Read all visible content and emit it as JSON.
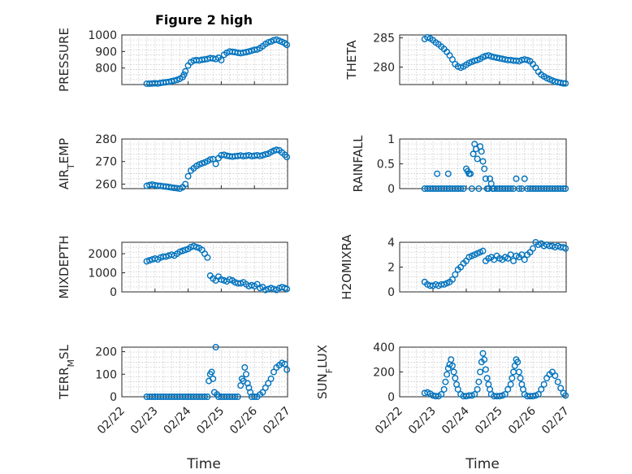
{
  "figure": {
    "title": "Figure 2 high",
    "xlabel": "Time",
    "date_ticks": [
      "02/22",
      "02/23",
      "02/24",
      "02/25",
      "02/26",
      "02/27"
    ],
    "marker_color": "#0072BD"
  },
  "chart_data": [
    {
      "type": "scatter",
      "name": "PRESSURE",
      "ylabel": "PRESSURE",
      "xlim": [
        "02/22",
        "02/27"
      ],
      "ylim": [
        700,
        1000
      ],
      "yticks": [
        800,
        900,
        1000
      ],
      "ytick_labels": [
        "800",
        "900",
        "1000"
      ],
      "x": [
        "02/22 18:00",
        "02/22 20:00",
        "02/22 22:00",
        "02/23 00:00",
        "02/23 02:00",
        "02/23 04:00",
        "02/23 06:00",
        "02/23 08:00",
        "02/23 10:00",
        "02/23 12:00",
        "02/23 14:00",
        "02/23 16:00",
        "02/23 18:00",
        "02/23 20:00",
        "02/23 21:00",
        "02/23 22:00",
        "02/24 00:00",
        "02/24 02:00",
        "02/24 04:00",
        "02/24 06:00",
        "02/24 08:00",
        "02/24 10:00",
        "02/24 12:00",
        "02/24 14:00",
        "02/24 16:00",
        "02/24 18:00",
        "02/24 20:00",
        "02/24 22:00",
        "02/25 00:00",
        "02/25 02:00",
        "02/25 04:00",
        "02/25 06:00",
        "02/25 08:00",
        "02/25 10:00",
        "02/25 12:00",
        "02/25 14:00",
        "02/25 16:00",
        "02/25 18:00",
        "02/25 20:00",
        "02/25 22:00",
        "02/26 00:00",
        "02/26 02:00",
        "02/26 04:00",
        "02/26 06:00",
        "02/26 08:00",
        "02/26 10:00",
        "02/26 12:00",
        "02/26 14:00",
        "02/26 16:00",
        "02/26 18:00",
        "02/26 20:00",
        "02/26 22:00",
        "02/26 23:30"
      ],
      "y": [
        705,
        705,
        706,
        708,
        706,
        710,
        712,
        714,
        716,
        720,
        724,
        728,
        735,
        745,
        760,
        780,
        815,
        835,
        845,
        848,
        846,
        850,
        852,
        855,
        860,
        858,
        854,
        862,
        848,
        880,
        892,
        900,
        898,
        896,
        892,
        890,
        893,
        896,
        900,
        905,
        910,
        912,
        920,
        932,
        945,
        955,
        960,
        968,
        972,
        965,
        958,
        950,
        940
      ]
    },
    {
      "type": "scatter",
      "name": "THETA",
      "ylabel": "THETA",
      "xlim": [
        "02/22",
        "02/27"
      ],
      "ylim": [
        277,
        285.5
      ],
      "yticks": [
        280,
        285
      ],
      "ytick_labels": [
        "280",
        "285"
      ],
      "x": [
        "02/22 18:00",
        "02/22 20:00",
        "02/22 22:00",
        "02/23 00:00",
        "02/23 02:00",
        "02/23 04:00",
        "02/23 06:00",
        "02/23 08:00",
        "02/23 10:00",
        "02/23 12:00",
        "02/23 14:00",
        "02/23 16:00",
        "02/23 18:00",
        "02/23 20:00",
        "02/23 22:00",
        "02/24 00:00",
        "02/24 02:00",
        "02/24 04:00",
        "02/24 06:00",
        "02/24 08:00",
        "02/24 10:00",
        "02/24 12:00",
        "02/24 14:00",
        "02/24 16:00",
        "02/24 18:00",
        "02/24 20:00",
        "02/24 22:00",
        "02/25 00:00",
        "02/25 02:00",
        "02/25 04:00",
        "02/25 06:00",
        "02/25 08:00",
        "02/25 10:00",
        "02/25 12:00",
        "02/25 14:00",
        "02/25 16:00",
        "02/25 18:00",
        "02/25 20:00",
        "02/25 22:00",
        "02/26 00:00",
        "02/26 02:00",
        "02/26 04:00",
        "02/26 06:00",
        "02/26 08:00",
        "02/26 10:00",
        "02/26 12:00",
        "02/26 14:00",
        "02/26 16:00",
        "02/26 18:00",
        "02/26 20:00",
        "02/26 22:00",
        "02/26 23:30"
      ],
      "y": [
        284.8,
        285.1,
        284.9,
        284.6,
        284.2,
        283.9,
        283.5,
        283.1,
        282.6,
        282.0,
        281.3,
        280.5,
        280.1,
        279.9,
        280.1,
        280.4,
        280.7,
        280.9,
        281.1,
        281.2,
        281.4,
        281.7,
        281.9,
        282.0,
        281.8,
        281.7,
        281.6,
        281.5,
        281.4,
        281.3,
        281.2,
        281.2,
        281.1,
        281.1,
        281.0,
        281.2,
        281.3,
        281.2,
        281.0,
        280.5,
        279.9,
        279.2,
        278.7,
        278.4,
        278.1,
        277.9,
        277.7,
        277.5,
        277.4,
        277.3,
        277.2,
        277.2
      ]
    },
    {
      "type": "scatter",
      "name": "AIR_TEMP",
      "ylabel": "AIR",
      "ylabel_sub": "T",
      "ylabel_tail": "EMP",
      "xlim": [
        "02/22",
        "02/27"
      ],
      "ylim": [
        258,
        280
      ],
      "yticks": [
        260,
        270,
        280
      ],
      "ytick_labels": [
        "260",
        "270",
        "280"
      ],
      "x": [
        "02/22 18:00",
        "02/22 20:00",
        "02/22 22:00",
        "02/23 00:00",
        "02/23 02:00",
        "02/23 04:00",
        "02/23 06:00",
        "02/23 08:00",
        "02/23 10:00",
        "02/23 12:00",
        "02/23 14:00",
        "02/23 16:00",
        "02/23 18:00",
        "02/23 20:00",
        "02/23 22:00",
        "02/24 00:00",
        "02/24 02:00",
        "02/24 04:00",
        "02/24 06:00",
        "02/24 08:00",
        "02/24 10:00",
        "02/24 12:00",
        "02/24 14:00",
        "02/24 16:00",
        "02/24 18:00",
        "02/24 20:00",
        "02/24 22:00",
        "02/25 00:00",
        "02/25 02:00",
        "02/25 04:00",
        "02/25 06:00",
        "02/25 08:00",
        "02/25 10:00",
        "02/25 12:00",
        "02/25 14:00",
        "02/25 16:00",
        "02/25 18:00",
        "02/25 20:00",
        "02/25 22:00",
        "02/26 00:00",
        "02/26 02:00",
        "02/26 04:00",
        "02/26 06:00",
        "02/26 08:00",
        "02/26 10:00",
        "02/26 12:00",
        "02/26 14:00",
        "02/26 16:00",
        "02/26 18:00",
        "02/26 20:00",
        "02/26 22:00",
        "02/26 23:30"
      ],
      "y": [
        259.2,
        259.6,
        259.8,
        259.5,
        259.3,
        259.2,
        259.0,
        258.9,
        258.7,
        258.5,
        258.3,
        258.2,
        258.0,
        258.6,
        260.0,
        263.5,
        266.0,
        267.0,
        268.0,
        268.7,
        269.2,
        269.6,
        270.2,
        270.9,
        271.1,
        269.0,
        271.5,
        272.8,
        273.0,
        272.6,
        272.4,
        272.2,
        272.4,
        272.5,
        272.7,
        272.4,
        272.6,
        272.8,
        272.4,
        272.6,
        272.8,
        272.5,
        272.8,
        273.2,
        273.5,
        274.2,
        274.8,
        275.2,
        275.0,
        274.0,
        273.0,
        272.0
      ]
    },
    {
      "type": "scatter",
      "name": "RAINFALL",
      "ylabel": "RAINFALL",
      "xlim": [
        "02/22",
        "02/27"
      ],
      "ylim": [
        0,
        1
      ],
      "yticks": [
        0,
        0.5,
        1
      ],
      "ytick_labels": [
        "0",
        "0.5",
        "1"
      ],
      "x": [
        "02/22 18:00",
        "02/22 20:00",
        "02/22 22:00",
        "02/23 00:00",
        "02/23 02:00",
        "02/23 03:00",
        "02/23 04:00",
        "02/23 06:00",
        "02/23 08:00",
        "02/23 10:00",
        "02/23 11:00",
        "02/23 12:00",
        "02/23 14:00",
        "02/23 16:00",
        "02/23 18:00",
        "02/23 20:00",
        "02/23 22:00",
        "02/24 00:00",
        "02/24 01:00",
        "02/24 02:00",
        "02/24 03:00",
        "02/24 04:00",
        "02/24 05:00",
        "02/24 06:00",
        "02/24 07:00",
        "02/24 08:00",
        "02/24 09:00",
        "02/24 10:00",
        "02/24 11:00",
        "02/24 12:00",
        "02/24 13:00",
        "02/24 14:00",
        "02/24 15:00",
        "02/24 16:00",
        "02/24 17:00",
        "02/24 18:00",
        "02/24 19:00",
        "02/24 20:00",
        "02/24 22:00",
        "02/25 00:00",
        "02/25 02:00",
        "02/25 04:00",
        "02/25 06:00",
        "02/25 08:00",
        "02/25 10:00",
        "02/25 12:00",
        "02/25 14:00",
        "02/25 16:00",
        "02/25 18:00",
        "02/25 20:00",
        "02/25 22:00",
        "02/26 00:00",
        "02/26 02:00",
        "02/26 04:00",
        "02/26 06:00",
        "02/26 08:00",
        "02/26 10:00",
        "02/26 12:00",
        "02/26 14:00",
        "02/26 16:00",
        "02/26 18:00",
        "02/26 20:00",
        "02/26 22:00",
        "02/26 23:30"
      ],
      "y": [
        0,
        0,
        0,
        0,
        0,
        0.3,
        0,
        0,
        0,
        0,
        0.3,
        0,
        0,
        0,
        0,
        0,
        0,
        0.4,
        0.35,
        0.3,
        0.3,
        0,
        0.7,
        0.9,
        0.8,
        0.6,
        0,
        0.85,
        0.75,
        0.55,
        0.4,
        0.2,
        0,
        0,
        0.2,
        0.1,
        0,
        0,
        0,
        0,
        0,
        0,
        0,
        0,
        0,
        0.2,
        0,
        0,
        0.2,
        0,
        0,
        0,
        0,
        0,
        0,
        0,
        0,
        0,
        0,
        0,
        0,
        0,
        0,
        0
      ]
    },
    {
      "type": "scatter",
      "name": "MIXDEPTH",
      "ylabel": "MIXDEPTH",
      "xlim": [
        "02/22",
        "02/27"
      ],
      "ylim": [
        0,
        2600
      ],
      "yticks": [
        0,
        1000,
        2000
      ],
      "ytick_labels": [
        "0",
        "1000",
        "2000"
      ],
      "x": [
        "02/22 18:00",
        "02/22 20:00",
        "02/22 22:00",
        "02/23 00:00",
        "02/23 02:00",
        "02/23 04:00",
        "02/23 06:00",
        "02/23 08:00",
        "02/23 10:00",
        "02/23 12:00",
        "02/23 14:00",
        "02/23 16:00",
        "02/23 18:00",
        "02/23 20:00",
        "02/23 22:00",
        "02/24 00:00",
        "02/24 02:00",
        "02/24 04:00",
        "02/24 06:00",
        "02/24 08:00",
        "02/24 10:00",
        "02/24 12:00",
        "02/24 14:00",
        "02/24 16:00",
        "02/24 18:00",
        "02/24 20:00",
        "02/24 22:00",
        "02/25 00:00",
        "02/25 02:00",
        "02/25 04:00",
        "02/25 06:00",
        "02/25 08:00",
        "02/25 10:00",
        "02/25 12:00",
        "02/25 14:00",
        "02/25 16:00",
        "02/25 18:00",
        "02/25 20:00",
        "02/25 22:00",
        "02/26 00:00",
        "02/26 02:00",
        "02/26 04:00",
        "02/26 06:00",
        "02/26 08:00",
        "02/26 10:00",
        "02/26 12:00",
        "02/26 14:00",
        "02/26 16:00",
        "02/26 18:00",
        "02/26 20:00",
        "02/26 22:00",
        "02/26 23:30"
      ],
      "y": [
        1600,
        1650,
        1700,
        1750,
        1700,
        1800,
        1850,
        1850,
        1900,
        1950,
        1900,
        2000,
        2100,
        2150,
        2200,
        2250,
        2350,
        2400,
        2350,
        2300,
        2200,
        2000,
        1800,
        850,
        700,
        600,
        800,
        650,
        600,
        550,
        650,
        600,
        500,
        450,
        450,
        500,
        400,
        300,
        350,
        300,
        400,
        200,
        250,
        100,
        150,
        200,
        150,
        100,
        200,
        250,
        200,
        150
      ]
    },
    {
      "type": "scatter",
      "name": "H2OMIXRA",
      "ylabel": "H2OMIXRA",
      "xlim": [
        "02/22",
        "02/27"
      ],
      "ylim": [
        0,
        4
      ],
      "yticks": [
        0,
        2,
        4
      ],
      "ytick_labels": [
        "0",
        "2",
        "4"
      ],
      "x": [
        "02/22 18:00",
        "02/22 20:00",
        "02/22 22:00",
        "02/23 00:00",
        "02/23 02:00",
        "02/23 04:00",
        "02/23 06:00",
        "02/23 08:00",
        "02/23 10:00",
        "02/23 12:00",
        "02/23 14:00",
        "02/23 16:00",
        "02/23 18:00",
        "02/23 20:00",
        "02/23 22:00",
        "02/24 00:00",
        "02/24 02:00",
        "02/24 04:00",
        "02/24 06:00",
        "02/24 08:00",
        "02/24 10:00",
        "02/24 12:00",
        "02/24 14:00",
        "02/24 16:00",
        "02/24 18:00",
        "02/24 20:00",
        "02/24 22:00",
        "02/25 00:00",
        "02/25 02:00",
        "02/25 04:00",
        "02/25 06:00",
        "02/25 08:00",
        "02/25 10:00",
        "02/25 12:00",
        "02/25 14:00",
        "02/25 16:00",
        "02/25 18:00",
        "02/25 20:00",
        "02/25 22:00",
        "02/26 00:00",
        "02/26 02:00",
        "02/26 04:00",
        "02/26 06:00",
        "02/26 08:00",
        "02/26 10:00",
        "02/26 12:00",
        "02/26 14:00",
        "02/26 16:00",
        "02/26 18:00",
        "02/26 20:00",
        "02/26 22:00",
        "02/26 23:30"
      ],
      "y": [
        0.8,
        0.6,
        0.5,
        0.5,
        0.6,
        0.5,
        0.6,
        0.6,
        0.7,
        0.8,
        1.0,
        1.4,
        1.8,
        2.0,
        2.3,
        2.5,
        2.8,
        2.9,
        3.0,
        3.1,
        3.2,
        3.3,
        2.5,
        2.7,
        2.8,
        2.6,
        2.9,
        2.7,
        2.6,
        2.8,
        2.7,
        3.0,
        2.5,
        2.9,
        2.8,
        3.0,
        2.6,
        3.0,
        3.2,
        3.5,
        4.0,
        3.8,
        3.9,
        3.7,
        3.8,
        3.7,
        3.7,
        3.6,
        3.7,
        3.6,
        3.6,
        3.5
      ]
    },
    {
      "type": "scatter",
      "name": "TERR_MSL",
      "ylabel": "TERR",
      "ylabel_sub": "M",
      "ylabel_tail": "SL",
      "xlim": [
        "02/22",
        "02/27"
      ],
      "ylim": [
        0,
        220
      ],
      "yticks": [
        0,
        100,
        200
      ],
      "ytick_labels": [
        "0",
        "100",
        "200"
      ],
      "x": [
        "02/22 18:00",
        "02/22 20:00",
        "02/22 22:00",
        "02/23 00:00",
        "02/23 02:00",
        "02/23 04:00",
        "02/23 06:00",
        "02/23 08:00",
        "02/23 10:00",
        "02/23 12:00",
        "02/23 14:00",
        "02/23 16:00",
        "02/23 18:00",
        "02/23 20:00",
        "02/23 22:00",
        "02/24 00:00",
        "02/24 02:00",
        "02/24 04:00",
        "02/24 06:00",
        "02/24 08:00",
        "02/24 10:00",
        "02/24 12:00",
        "02/24 14:00",
        "02/24 15:00",
        "02/24 16:00",
        "02/24 17:00",
        "02/24 18:00",
        "02/24 19:00",
        "02/24 20:00",
        "02/24 21:00",
        "02/24 22:00",
        "02/25 00:00",
        "02/25 02:00",
        "02/25 04:00",
        "02/25 06:00",
        "02/25 08:00",
        "02/25 10:00",
        "02/25 12:00",
        "02/25 14:00",
        "02/25 15:00",
        "02/25 16:00",
        "02/25 17:00",
        "02/25 18:00",
        "02/25 19:00",
        "02/25 20:00",
        "02/25 21:00",
        "02/25 22:00",
        "02/26 00:00",
        "02/26 02:00",
        "02/26 04:00",
        "02/26 06:00",
        "02/26 08:00",
        "02/26 10:00",
        "02/26 12:00",
        "02/26 14:00",
        "02/26 16:00",
        "02/26 18:00",
        "02/26 20:00",
        "02/26 22:00",
        "02/26 23:30"
      ],
      "y": [
        0,
        0,
        0,
        0,
        0,
        0,
        0,
        0,
        0,
        0,
        0,
        0,
        0,
        0,
        0,
        0,
        0,
        0,
        0,
        0,
        0,
        0,
        0,
        70,
        100,
        110,
        80,
        20,
        220,
        10,
        0,
        0,
        0,
        0,
        0,
        0,
        0,
        0,
        50,
        80,
        70,
        130,
        100,
        60,
        40,
        20,
        0,
        0,
        0,
        10,
        20,
        40,
        60,
        80,
        110,
        130,
        140,
        150,
        145,
        120
      ]
    },
    {
      "type": "scatter",
      "name": "SUN_FLUX",
      "ylabel": "SUN",
      "ylabel_sub": "F",
      "ylabel_tail": "LUX",
      "xlim": [
        "02/22",
        "02/27"
      ],
      "ylim": [
        0,
        400
      ],
      "yticks": [
        0,
        200,
        400
      ],
      "ytick_labels": [
        "0",
        "200",
        "400"
      ],
      "x": [
        "02/22 18:00",
        "02/22 20:00",
        "02/22 22:00",
        "02/23 00:00",
        "02/23 02:00",
        "02/23 04:00",
        "02/23 06:00",
        "02/23 08:00",
        "02/23 09:00",
        "02/23 10:00",
        "02/23 11:00",
        "02/23 12:00",
        "02/23 13:00",
        "02/23 14:00",
        "02/23 15:00",
        "02/23 16:00",
        "02/23 17:00",
        "02/23 18:00",
        "02/23 20:00",
        "02/23 22:00",
        "02/24 00:00",
        "02/24 02:00",
        "02/24 04:00",
        "02/24 06:00",
        "02/24 08:00",
        "02/24 09:00",
        "02/24 10:00",
        "02/24 11:00",
        "02/24 12:00",
        "02/24 13:00",
        "02/24 14:00",
        "02/24 15:00",
        "02/24 16:00",
        "02/24 17:00",
        "02/24 18:00",
        "02/24 20:00",
        "02/24 22:00",
        "02/25 00:00",
        "02/25 02:00",
        "02/25 04:00",
        "02/25 06:00",
        "02/25 08:00",
        "02/25 09:00",
        "02/25 10:00",
        "02/25 11:00",
        "02/25 12:00",
        "02/25 13:00",
        "02/25 14:00",
        "02/25 15:00",
        "02/25 16:00",
        "02/25 17:00",
        "02/25 18:00",
        "02/25 20:00",
        "02/25 22:00",
        "02/26 00:00",
        "02/26 02:00",
        "02/26 04:00",
        "02/26 06:00",
        "02/26 08:00",
        "02/26 10:00",
        "02/26 12:00",
        "02/26 14:00",
        "02/26 16:00",
        "02/26 18:00",
        "02/26 20:00",
        "02/26 22:00",
        "02/26 23:30"
      ],
      "y": [
        30,
        35,
        25,
        10,
        5,
        5,
        20,
        60,
        120,
        180,
        230,
        260,
        300,
        250,
        200,
        150,
        100,
        60,
        20,
        5,
        5,
        10,
        10,
        20,
        60,
        120,
        200,
        280,
        350,
        300,
        220,
        150,
        100,
        60,
        20,
        5,
        5,
        5,
        10,
        20,
        60,
        100,
        150,
        200,
        250,
        300,
        280,
        200,
        150,
        100,
        60,
        20,
        5,
        5,
        5,
        10,
        20,
        60,
        100,
        150,
        180,
        200,
        170,
        120,
        70,
        30,
        10
      ]
    }
  ]
}
